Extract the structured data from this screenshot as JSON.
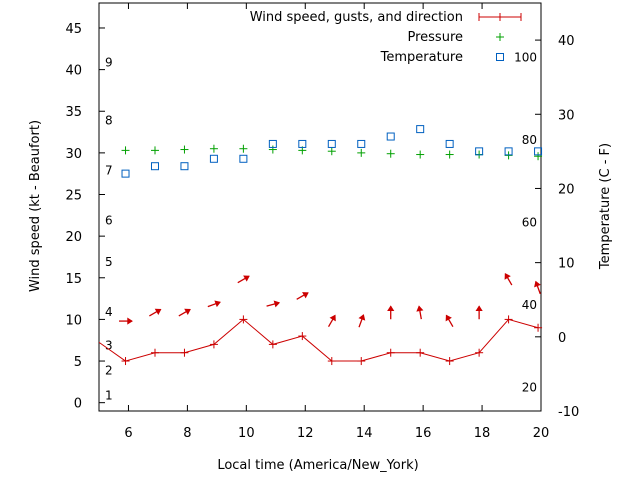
{
  "chart_data": {
    "type": "line",
    "xlabel": "Local time (America/New_York)",
    "ylabel_left": "Wind speed (kt - Beaufort)",
    "ylabel_right": "Temperature (C - F)",
    "xlim": [
      5,
      20
    ],
    "ylim_left": [
      -1,
      48
    ],
    "ylim_right_c": [
      -10,
      45
    ],
    "x_ticks": [
      6,
      8,
      10,
      12,
      14,
      16,
      18,
      20
    ],
    "y_left_ticks": [
      0,
      5,
      10,
      15,
      20,
      25,
      30,
      35,
      40,
      45
    ],
    "y_right_ticks_c": [
      -10,
      0,
      10,
      20,
      30,
      40
    ],
    "beaufort_labels": [
      {
        "label": "1",
        "kt": 1
      },
      {
        "label": "2",
        "kt": 4
      },
      {
        "label": "3",
        "kt": 7
      },
      {
        "label": "4",
        "kt": 11
      },
      {
        "label": "5",
        "kt": 17
      },
      {
        "label": "6",
        "kt": 22
      },
      {
        "label": "7",
        "kt": 28
      },
      {
        "label": "8",
        "kt": 34
      },
      {
        "label": "9",
        "kt": 41
      }
    ],
    "fahrenheit_labels": [
      {
        "label": "20",
        "f": 20
      },
      {
        "label": "40",
        "f": 40
      },
      {
        "label": "60",
        "f": 60
      },
      {
        "label": "80",
        "f": 80
      },
      {
        "label": "100",
        "f": 100
      }
    ],
    "series": [
      {
        "name": "Wind speed, gusts, and direction",
        "color": "#cc0000",
        "x": [
          4.9,
          5.9,
          6.9,
          7.9,
          8.9,
          9.9,
          10.9,
          11.9,
          12.9,
          13.9,
          14.9,
          15.9,
          16.9,
          17.9,
          18.9,
          19.9
        ],
        "y": [
          7.5,
          5,
          6,
          6,
          7,
          10,
          7,
          8,
          5,
          5,
          6,
          6,
          5,
          6,
          10,
          9
        ],
        "direction_deg": [
          null,
          90,
          60,
          60,
          70,
          60,
          75,
          60,
          30,
          20,
          0,
          350,
          330,
          0,
          330,
          340
        ]
      },
      {
        "name": "Pressure",
        "color": "#00a000",
        "x": [
          5.9,
          6.9,
          7.9,
          8.9,
          9.9,
          10.9,
          11.9,
          12.9,
          13.9,
          14.9,
          15.9,
          16.9,
          17.9,
          18.9,
          19.9
        ],
        "y": [
          30.3,
          30.3,
          30.4,
          30.5,
          30.5,
          30.4,
          30.3,
          30.2,
          30.0,
          29.9,
          29.8,
          29.8,
          29.8,
          29.7,
          29.6
        ]
      },
      {
        "name": "Temperature",
        "color": "#0060c0",
        "x": [
          5.9,
          6.9,
          7.9,
          8.9,
          9.9,
          10.9,
          11.9,
          12.9,
          13.9,
          14.9,
          15.9,
          16.9,
          17.9,
          18.9,
          19.9
        ],
        "y_c": [
          22,
          23,
          23,
          24,
          24,
          26,
          26,
          26,
          26,
          27,
          28,
          26,
          25,
          25,
          25
        ]
      }
    ],
    "legend_position": "top-right",
    "grid": false
  }
}
